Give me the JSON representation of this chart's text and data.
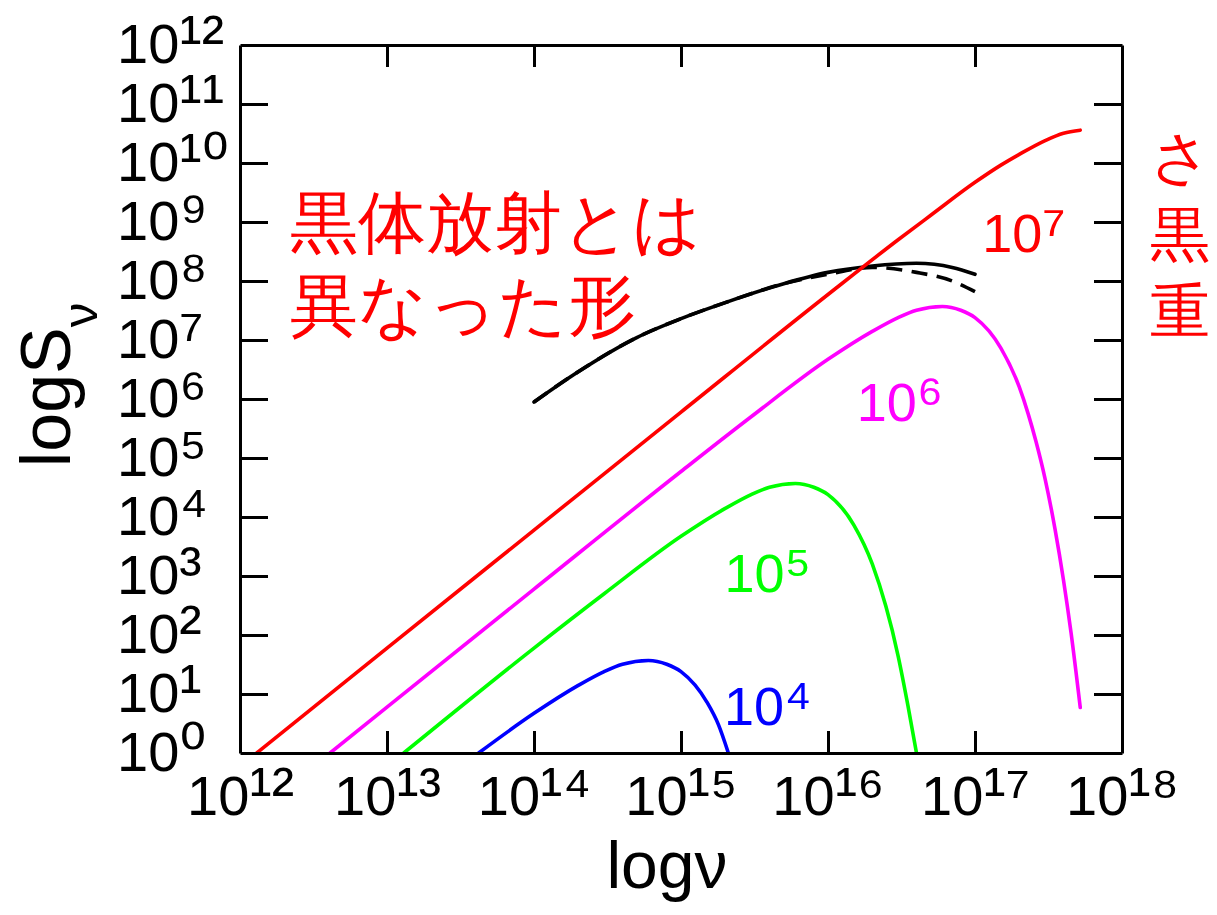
{
  "chart_data": {
    "type": "line",
    "xlabel": "logν",
    "ylabel": "logS$_{ν}$",
    "log": "xy",
    "xlim": [
      1000000000000.0,
      1e+18
    ],
    "ylim": [
      1,
      1000000000000.0
    ],
    "xticks": [
      {
        "value": 1000000000000.0,
        "label": "10¹²"
      },
      {
        "value": 10000000000000.0,
        "label": "10¹³"
      },
      {
        "value": 100000000000000.0,
        "label": "10¹⁴"
      },
      {
        "value": 1000000000000000.0,
        "label": "10¹⁵"
      },
      {
        "value": 1e+16,
        "label": "10¹⁶"
      },
      {
        "value": 1e+17,
        "label": "10¹⁷"
      },
      {
        "value": 1e+18,
        "label": "10¹⁸"
      }
    ],
    "yticks": [
      {
        "value": 1,
        "label": "10⁰"
      },
      {
        "value": 10,
        "label": "10¹"
      },
      {
        "value": 100,
        "label": "10²"
      },
      {
        "value": 1000.0,
        "label": "10³"
      },
      {
        "value": 10000.0,
        "label": "10⁴"
      },
      {
        "value": 100000.0,
        "label": "10⁵"
      },
      {
        "value": 1000000.0,
        "label": "10⁶"
      },
      {
        "value": 10000000.0,
        "label": "10⁷"
      },
      {
        "value": 100000000.0,
        "label": "10⁸"
      },
      {
        "value": 1000000000.0,
        "label": "10⁹"
      },
      {
        "value": 10000000000.0,
        "label": "10¹⁰"
      },
      {
        "value": 100000000000.0,
        "label": "10¹¹"
      },
      {
        "value": 1000000000000.0,
        "label": "10¹²"
      }
    ],
    "annotations": [
      "黒体放射とは",
      "異なった形",
      "さ",
      "黒",
      "重"
    ],
    "series": [
      {
        "color": "#000000",
        "x": [
          100000000000000.0,
          200000000000000.0,
          500000000000000.0,
          1000000000000000.0,
          2000000000000000.0,
          5000000000000000.0,
          1e+16,
          2e+16,
          4e+16,
          7e+16,
          1e+17
        ],
        "values": [
          890000.0,
          2900000.0,
          11000000.0,
          23000000.0,
          43000000.0,
          90000000.0,
          140000000.0,
          180000000.0,
          200000000.0,
          170000000.0,
          130000000.0
        ]
      },
      {
        "color": "#000000",
        "line_style": "dashed",
        "x": [
          100000000000000.0,
          200000000000000.0,
          500000000000000.0,
          1000000000000000.0,
          2000000000000000.0,
          5000000000000000.0,
          1e+16,
          2e+16,
          4e+16,
          7e+16,
          1e+17
        ],
        "values": [
          890000.0,
          2900000.0,
          11000000.0,
          23000000.0,
          43000000.0,
          90000000.0,
          130000000.0,
          170000000.0,
          140000000.0,
          100000000.0,
          66000000.0
        ]
      },
      {
        "name": "10⁴",
        "color": "#0000ff",
        "x": [
          42000000000000.0,
          100000000000000.0,
          200000000000000.0,
          300000000000000.0,
          400000000000000.0,
          600000000000000.0,
          800000000000000.0,
          1000000000000000.0,
          1500000000000000.0,
          1800000000000000.0,
          2100000000000000.0
        ],
        "values": [
          1.0,
          4.7,
          14,
          24,
          32,
          37,
          32,
          24,
          7.3,
          3.0,
          1.0
        ]
      },
      {
        "name": "10⁵",
        "color": "#00ff00",
        "x": [
          13000000000000.0,
          100000000000000.0,
          300000000000000.0,
          1000000000000000.0,
          2000000000000000.0,
          3000000000000000.0,
          4000000000000000.0,
          6000000000000000.0,
          8000000000000000.0,
          1e+16,
          1.5e+16,
          2e+16,
          3e+16,
          3.5e+16,
          4e+16
        ],
        "values": [
          1.0,
          60,
          500,
          4700.0,
          14000.0,
          24000.0,
          32000.0,
          37000.0,
          32000.0,
          24000.0,
          7300.0,
          1600.0,
          44,
          6.3,
          1.0
        ]
      },
      {
        "name": "10⁶",
        "color": "#ff00ff",
        "x": [
          4100000000000.0,
          10000000000000.0,
          100000000000000.0,
          1000000000000000.0,
          3000000000000000.0,
          1e+16,
          2e+16,
          3e+16,
          4e+16,
          6e+16,
          8e+16,
          1e+17,
          1.5e+17,
          2e+17,
          2.3e+17,
          2.6e+17,
          3e+17,
          3.5e+17,
          4e+17,
          4.5e+17,
          5.2e+17
        ],
        "values": [
          1.0,
          6.0,
          600,
          59000.0,
          500000.0,
          4700000.0,
          14000000.0,
          24000000.0,
          32000000.0,
          37000000.0,
          32000000.0,
          24000000.0,
          7300000.0,
          1600000.0,
          560000.0,
          190000.0,
          44000.0,
          6300.0,
          850,
          110,
          5.9
        ]
      },
      {
        "name": "10⁷",
        "color": "#ff0000",
        "x": [
          1300000000000.0,
          10000000000000.0,
          100000000000000.0,
          1000000000000000.0,
          1e+16,
          3e+16,
          5e+16,
          1e+17,
          1.5e+17,
          2e+17,
          3e+17,
          4e+17,
          5.2e+17
        ],
        "values": [
          1.0,
          60,
          6000.0,
          600000.0,
          59000000.0,
          500000000.0,
          1300000000.0,
          4700000000.0,
          9200000000.0,
          14000000000.0,
          24000000000.0,
          32000000000.0,
          36000000000.0
        ]
      }
    ]
  }
}
